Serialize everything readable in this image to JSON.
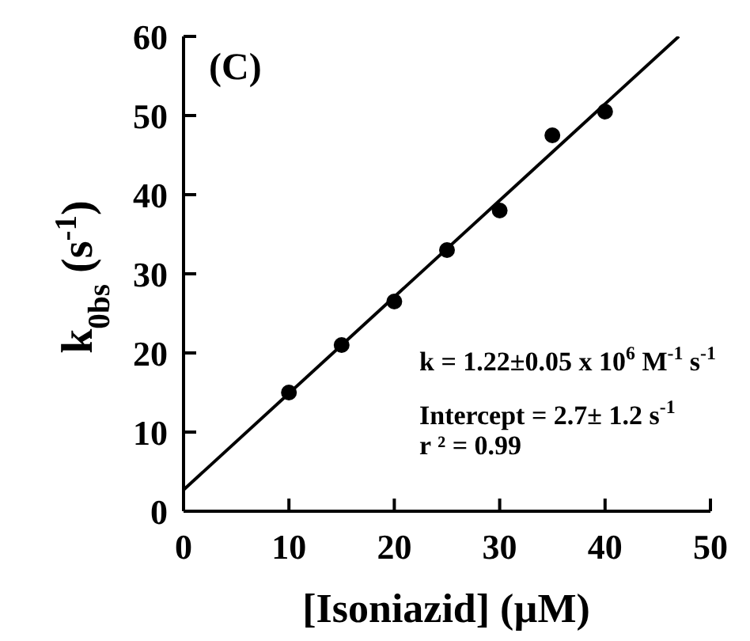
{
  "chart_data": {
    "type": "scatter",
    "xlabel": "[Isoniazid]  (µM)",
    "ylabel": "k$_{0bs}$ (s$^{-1}$)",
    "xlim": [
      0,
      50
    ],
    "xticks": [
      0,
      10,
      20,
      30,
      40,
      50
    ],
    "ylim": [
      0,
      60
    ],
    "yticks": [
      0,
      10,
      20,
      30,
      40,
      50,
      60
    ],
    "grid": false,
    "legend": false,
    "marker": "circle",
    "series": [
      {
        "color": "#000000",
        "x": [
          10,
          15,
          20,
          25,
          30,
          35,
          40
        ],
        "values": [
          15,
          21,
          26.5,
          33,
          38,
          47.5,
          50.5
        ]
      },
      {
        "type": "line",
        "color": "#000000",
        "marker": "none",
        "line_style": "solid",
        "x": [
          0,
          47
        ],
        "values": [
          2.7,
          60
        ]
      }
    ],
    "annotations": [
      "(C)",
      "k = 1.22±0.05 x 10$^{6}$ M$^{-1}$ s$^{-1}$",
      "Intercept = 2.7± 1.2 s$^{-1}$",
      "r ² = 0.99"
    ]
  }
}
